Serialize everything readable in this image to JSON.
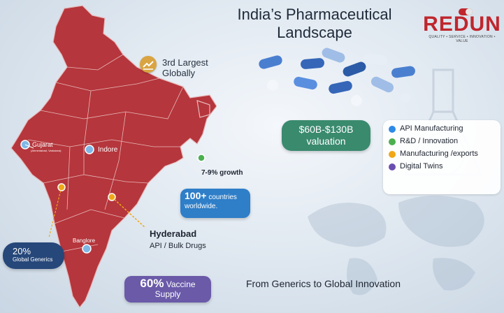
{
  "title": {
    "line1": "India’s Pharmaceutical",
    "line2": "Landscape"
  },
  "brand": {
    "name": "REDUN",
    "tagline": "QUALITY • SERVICE • INNOVATION • VALUE",
    "color": "#c0262d"
  },
  "badge": {
    "icon": "trend-up-icon",
    "line1": "3rd Largest",
    "line2": "Globally"
  },
  "map_labels": {
    "gujarat": "Gujarat",
    "gujarat_sub": "(Ahmedabad, Vadodara)",
    "indore": "Indore",
    "banglore": "Banglore",
    "growth": "7-9% growth",
    "hyderabad": "Hyderabad",
    "hyderabad_sub": "API / Bulk Drugs"
  },
  "valuation": {
    "line1": "$60B-$130B",
    "line2": "valuation",
    "color": "#3a8a6e"
  },
  "countries": {
    "big": "100+",
    "rest": " countries",
    "line2": "worldwide.",
    "color": "#2e7ec8"
  },
  "generics": {
    "big": "20%",
    "line2": "Global Generics",
    "color": "#26477a"
  },
  "vaccine": {
    "big": "60%",
    "rest": " Vaccine",
    "line2": "Supply",
    "color": "#6a5aa8"
  },
  "legend": [
    {
      "label": "API Manufacturing",
      "color": "#2e8ae6"
    },
    {
      "label": "R&D / Innovation",
      "color": "#4caf50"
    },
    {
      "label": "Manufacturing /exports",
      "color": "#f0a818"
    },
    {
      "label": "Digital Twins",
      "color": "#6a4fb0"
    }
  ],
  "tagline": "From Generics to Global Innovation",
  "map_color": "#b5363c"
}
